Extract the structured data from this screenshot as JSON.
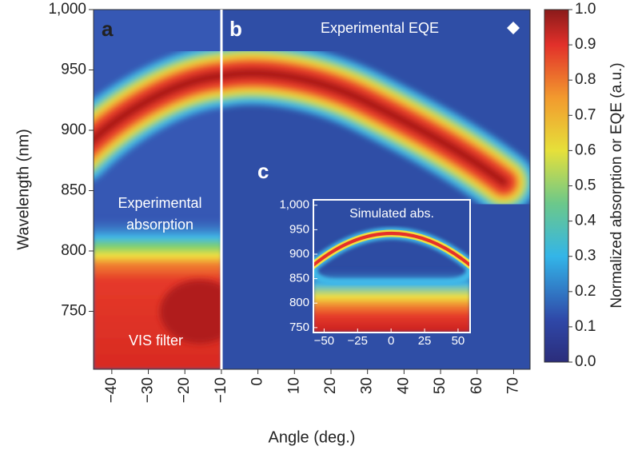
{
  "chart_data": [
    {
      "type": "heatmap",
      "panel_labels": [
        "a",
        "b"
      ],
      "annotations": [
        "Experimental EQE",
        "Experimental",
        "absorption",
        "VIS filter"
      ],
      "xlabel": "Angle (deg.)",
      "ylabel": "Wavelength (nm)",
      "xlim": [
        -45,
        74.5
      ],
      "ylim": [
        702,
        1000
      ],
      "xticks": [
        {
          "value": -40,
          "label": "−40"
        },
        {
          "value": -30,
          "label": "−30"
        },
        {
          "value": -20,
          "label": "−20"
        },
        {
          "value": -10,
          "label": "−10"
        },
        0,
        10,
        20,
        30,
        40,
        50,
        60,
        70
      ],
      "yticks": [
        750,
        800,
        850,
        900,
        950,
        {
          "value": 1000,
          "label": "1,000"
        }
      ],
      "colorbar": {
        "label": "Normalized absorption or EQE (a.u.)",
        "lim": [
          0,
          1
        ],
        "ticks": [
          {
            "value": 0,
            "label": "0.0"
          },
          {
            "value": 0.1,
            "label": "0.1"
          },
          {
            "value": 0.2,
            "label": "0.2"
          },
          {
            "value": 0.3,
            "label": "0.3"
          },
          {
            "value": 0.4,
            "label": "0.4"
          },
          {
            "value": 0.5,
            "label": "0.5"
          },
          {
            "value": 0.6,
            "label": "0.6"
          },
          {
            "value": 0.7,
            "label": "0.7"
          },
          {
            "value": 0.8,
            "label": "0.8"
          },
          {
            "value": 0.9,
            "label": "0.9"
          },
          {
            "value": 1,
            "label": "1.0"
          }
        ]
      }
    },
    {
      "type": "heatmap",
      "panel_label": "c",
      "title": "Simulated abs.",
      "xlim": [
        -58,
        59
      ],
      "ylim": [
        740,
        1011
      ],
      "xticks": [
        {
          "value": -50,
          "label": "−50"
        },
        {
          "value": -25,
          "label": "−25"
        },
        0,
        25,
        50
      ],
      "yticks": [
        750,
        800,
        850,
        900,
        950,
        {
          "value": 1000,
          "label": "1,000"
        }
      ]
    }
  ]
}
